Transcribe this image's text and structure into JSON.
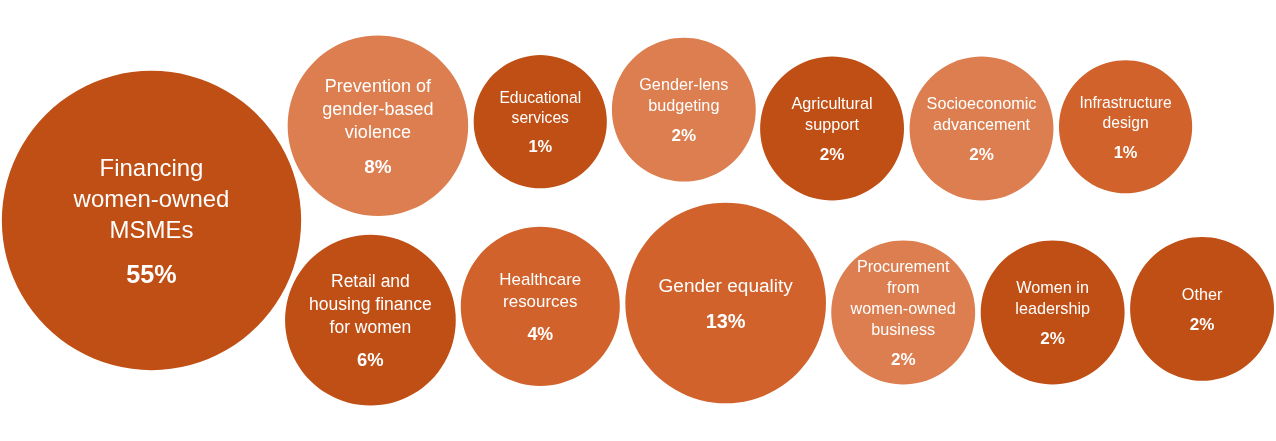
{
  "chart_data": {
    "type": "other",
    "categories": [
      "Financing women-owned MSMEs",
      "Prevention of gender-based violence",
      "Retail and housing finance for women",
      "Educational services",
      "Healthcare resources",
      "Gender-lens budgeting",
      "Gender equality",
      "Agricultural support",
      "Procurement from women-owned business",
      "Socioeconomic advancement",
      "Women in leadership",
      "Infrastructure design",
      "Other"
    ],
    "values": [
      55,
      8,
      6,
      1,
      4,
      2,
      13,
      2,
      2,
      2,
      2,
      1,
      2
    ],
    "value_labels": [
      "55%",
      "8%",
      "6%",
      "1%",
      "4%",
      "2%",
      "13%",
      "2%",
      "2%",
      "2%",
      "2%",
      "1%",
      "2%"
    ],
    "colors": [
      "#c04f15",
      "#dc7e4f",
      "#c04f15",
      "#c04f15",
      "#d1622b",
      "#dc7e4f",
      "#d1622b",
      "#c04f15",
      "#dc7e4f",
      "#dc7e4f",
      "#c04f15",
      "#d1622b",
      "#c04f15"
    ]
  }
}
